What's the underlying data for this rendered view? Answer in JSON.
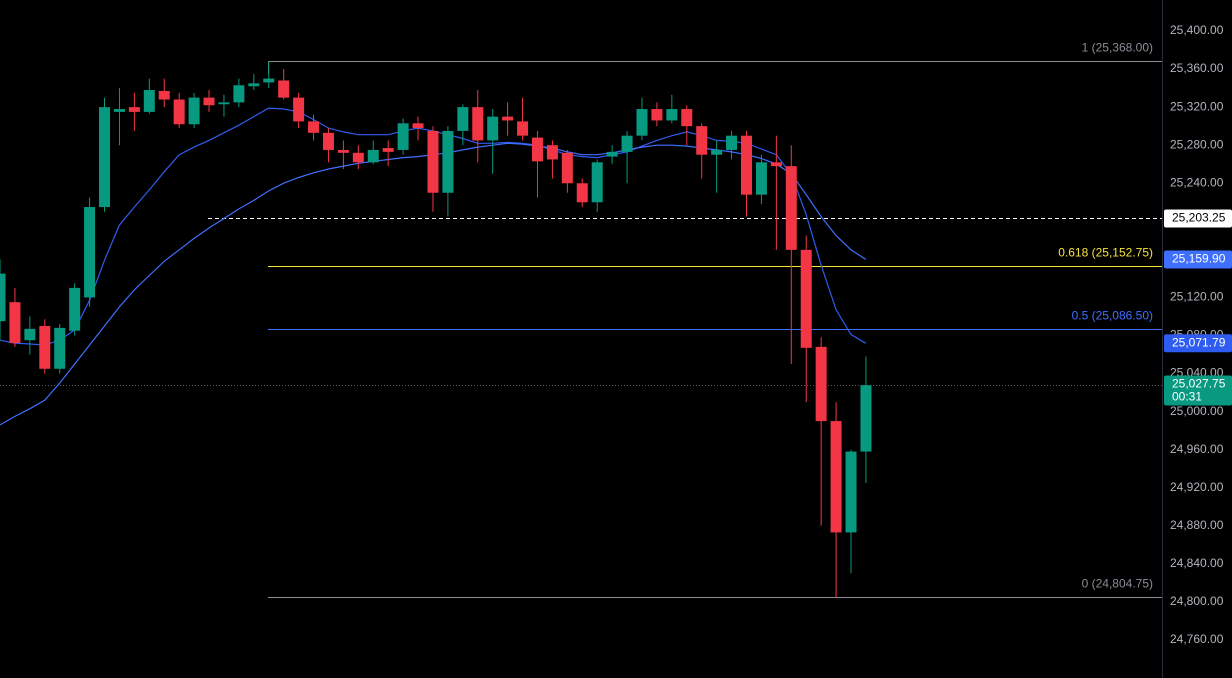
{
  "chart_data": {
    "type": "candlestick",
    "up_color": "#089981",
    "down_color": "#f23645",
    "open": [
      25095,
      25115,
      25075,
      25090,
      25045,
      25085,
      25120,
      25215,
      25315,
      25320,
      25315,
      25337,
      25328,
      25302,
      25330,
      25323,
      25325,
      25342,
      25346,
      25348,
      25330,
      25305,
      25293,
      25275,
      25272,
      25262,
      25277,
      25275,
      25303,
      25295,
      25230,
      25295,
      25320,
      25285,
      25310,
      25305,
      25288,
      25280,
      25272,
      25240,
      25220,
      25268,
      25273,
      25290,
      25318,
      25306,
      25318,
      25300,
      25270,
      25275,
      25290,
      25228,
      25262,
      25258,
      25170,
      25068,
      24990,
      24873,
      24958
    ],
    "high": [
      25160,
      25130,
      25100,
      25097,
      25092,
      25135,
      25225,
      25330,
      25340,
      25335,
      25350,
      25350,
      25335,
      25335,
      25338,
      25333,
      25350,
      25355,
      25368,
      25360,
      25335,
      25312,
      25298,
      25285,
      25280,
      25285,
      25285,
      25308,
      25310,
      25300,
      25300,
      25323,
      25338,
      25318,
      25325,
      25330,
      25295,
      25285,
      25275,
      25245,
      25265,
      25280,
      25295,
      25330,
      25325,
      25333,
      25322,
      25303,
      25285,
      25295,
      25295,
      25270,
      25290,
      25280,
      25185,
      25078,
      25010,
      24960,
      25058
    ],
    "low": [
      25075,
      25068,
      25060,
      25040,
      25040,
      25080,
      25110,
      25210,
      25280,
      25295,
      25313,
      25320,
      25298,
      25298,
      25315,
      25310,
      25320,
      25338,
      25340,
      25328,
      25298,
      25285,
      25262,
      25255,
      25255,
      25260,
      25258,
      25270,
      25285,
      25210,
      25205,
      25280,
      25262,
      25250,
      25290,
      25285,
      25225,
      25245,
      25230,
      25215,
      25210,
      25260,
      25240,
      25285,
      25300,
      25303,
      25280,
      25245,
      25230,
      25265,
      25205,
      25218,
      25170,
      25050,
      25010,
      24880,
      24804.75,
      24830,
      24925
    ],
    "close": [
      25145,
      25072,
      25087,
      25045,
      25088,
      25130,
      25215,
      25320,
      25318,
      25315,
      25338,
      25328,
      25302,
      25330,
      25322,
      25325,
      25343,
      25345,
      25350,
      25330,
      25305,
      25293,
      25275,
      25272,
      25262,
      25275,
      25273,
      25303,
      25298,
      25230,
      25295,
      25320,
      25285,
      25310,
      25306,
      25290,
      25263,
      25265,
      25240,
      25220,
      25262,
      25273,
      25290,
      25318,
      25306,
      25318,
      25300,
      25270,
      25275,
      25290,
      25228,
      25262,
      25258,
      25170,
      25067,
      24990,
      24873,
      24958,
      25027.75
    ],
    "lines": [
      {
        "color": "#2f5cf0",
        "last_label": "25,071.79",
        "values": [
          25075,
          25072,
          25071,
          25070,
          25075,
          25086,
          25117,
          25159,
          25196,
          25215,
          25233,
          25252,
          25270,
          25278,
          25285,
          25293,
          25301,
          25310,
          25319,
          25318,
          25315,
          25307,
          25298,
          25294,
          25291,
          25291,
          25291,
          25295,
          25298,
          25295,
          25291,
          25287,
          25282,
          25282,
          25283,
          25282,
          25280,
          25275,
          25270,
          25268,
          25267,
          25270,
          25273,
          25279,
          25285,
          25290,
          25294,
          25290,
          25285,
          25284,
          25282,
          25276,
          25270,
          25249,
          25207,
          25154,
          25107,
          25081,
          25071.79
        ]
      },
      {
        "color": "#3f6fff",
        "last_label": "25,159.90",
        "values": [
          24986,
          24995,
          25003,
          25012,
          25030,
          25050,
          25070,
          25090,
          25110,
          25128,
          25143,
          25158,
          25170,
          25182,
          25193,
          25203,
          25213,
          25222,
          25232,
          25240,
          25246,
          25251,
          25255,
          25258,
          25261,
          25263,
          25265,
          25267,
          25268,
          25270,
          25272,
          25275,
          25278,
          25280,
          25282,
          25281,
          25279,
          25277,
          25273,
          25270,
          25270,
          25272,
          25275,
          25278,
          25280,
          25280,
          25279,
          25277,
          25275,
          25273,
          25270,
          25266,
          25260,
          25250,
          25228,
          25205,
          25185,
          25170,
          25159.9
        ]
      }
    ],
    "fib_levels": [
      {
        "value": 25368,
        "label": "1 (25,368.00)",
        "color": "#8a8d96"
      },
      {
        "value": 25152.75,
        "label": "0.618 (25,152.75)",
        "color": "#f5e33b"
      },
      {
        "value": 25086.5,
        "label": "0.5 (25,086.50)",
        "color": "#3f6fff"
      },
      {
        "value": 24804.75,
        "label": "0 (24,804.75)",
        "color": "#8a8d96"
      }
    ],
    "horizontal_line": {
      "value": 25203.25,
      "label": "25,203.25"
    },
    "current_price": {
      "value": 25027.75,
      "label": "25,027.75",
      "countdown": "00:31"
    },
    "ylim": [
      24720,
      25432.6
    ],
    "yticks": [
      {
        "value": 24760,
        "label": "24,760.00"
      },
      {
        "value": 24800,
        "label": "24,800.00"
      },
      {
        "value": 24840,
        "label": "24,840.00"
      },
      {
        "value": 24880,
        "label": "24,880.00"
      },
      {
        "value": 24920,
        "label": "24,920.00"
      },
      {
        "value": 24960,
        "label": "24,960.00"
      },
      {
        "value": 25000,
        "label": "25,000.00"
      },
      {
        "value": 25040,
        "label": "25,040.00"
      },
      {
        "value": 25080,
        "label": "25,080.00"
      },
      {
        "value": 25120,
        "label": "25,120.00"
      },
      {
        "value": 25160,
        "label": "25,160.00"
      },
      {
        "value": 25200,
        "label": "25,200.00"
      },
      {
        "value": 25240,
        "label": "25,240.00"
      },
      {
        "value": 25280,
        "label": "25,280.00"
      },
      {
        "value": 25320,
        "label": "25,320.00"
      },
      {
        "value": 25360,
        "label": "25,360.00"
      },
      {
        "value": 25400,
        "label": "25,400.00"
      }
    ]
  }
}
